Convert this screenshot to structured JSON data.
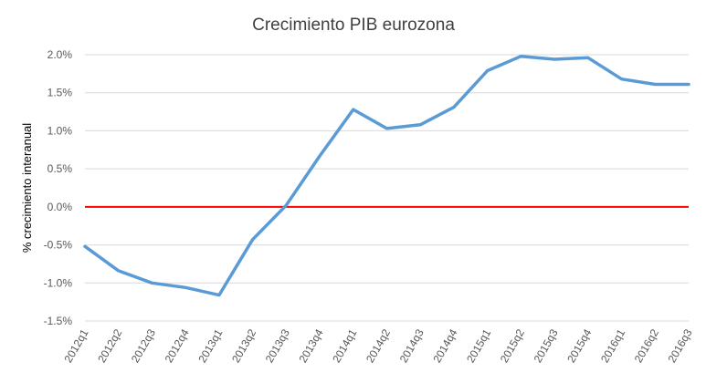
{
  "chart_data": {
    "type": "line",
    "title": "Crecimiento PIB eurozona",
    "xlabel": "",
    "ylabel": "% crecimiento interanual",
    "ylim": [
      -1.5,
      2.0
    ],
    "y_ticks": [
      2.0,
      1.5,
      1.0,
      0.5,
      0.0,
      -0.5,
      -1.0,
      -1.5
    ],
    "y_tick_labels": [
      "2.0%",
      "1.5%",
      "1.0%",
      "0.5%",
      "0.0%",
      "-0.5%",
      "-1.0%",
      "-1.5%"
    ],
    "categories": [
      "2012q1",
      "2012q2",
      "2012q3",
      "2012q4",
      "2013q1",
      "2013q2",
      "2013q3",
      "2013q4",
      "2014q1",
      "2014q2",
      "2014q3",
      "2014q4",
      "2015q1",
      "2015q2",
      "2015q3",
      "2015q4",
      "2016q1",
      "2016q2",
      "2016q3"
    ],
    "series": [
      {
        "values": [
          -0.52,
          -0.84,
          -1.0,
          -1.06,
          -1.16,
          -0.43,
          0.02,
          0.67,
          1.28,
          1.03,
          1.08,
          1.31,
          1.79,
          1.98,
          1.94,
          1.96,
          1.68,
          1.61,
          1.61
        ],
        "color": "#5b9bd5"
      }
    ],
    "reference_line": {
      "y": 0.0,
      "color": "#ff0000"
    },
    "grid": true,
    "legend": "none"
  }
}
